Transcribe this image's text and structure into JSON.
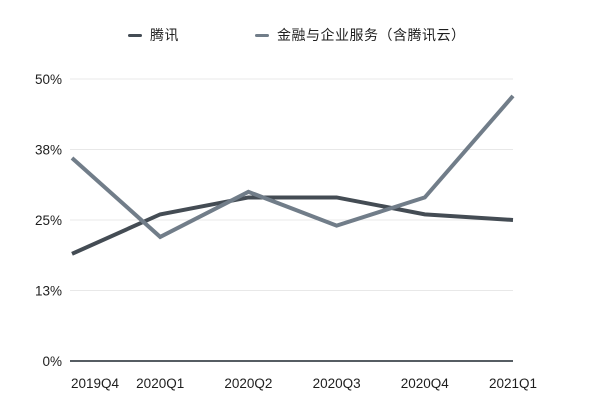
{
  "colors": {
    "background": "#ffffff",
    "gridline": "#e8e8e8",
    "axis_line": "#565d63",
    "text": "#1e1e1e",
    "series_tencent": "#444c54",
    "series_fintech": "#717d89"
  },
  "chart_data": {
    "type": "line",
    "categories": [
      "2019Q4",
      "2020Q1",
      "2020Q2",
      "2020Q3",
      "2020Q4",
      "2021Q1"
    ],
    "series": [
      {
        "name": "腾讯",
        "color": "#444c54",
        "values": [
          19,
          26,
          29,
          29,
          26,
          25
        ]
      },
      {
        "name": "金融与企业服务（含腾讯云）",
        "color": "#717d89",
        "values": [
          36,
          22,
          30,
          24,
          29,
          47
        ]
      }
    ],
    "unit": "%",
    "y_ticks": [
      {
        "label": "0%",
        "value": 0
      },
      {
        "label": "13%",
        "value": 12.5
      },
      {
        "label": "25%",
        "value": 25
      },
      {
        "label": "38%",
        "value": 37.5
      },
      {
        "label": "50%",
        "value": 50
      }
    ],
    "ylim": [
      0,
      50
    ],
    "grid": true,
    "legend_position": "top",
    "title": "",
    "xlabel": "",
    "ylabel": ""
  }
}
